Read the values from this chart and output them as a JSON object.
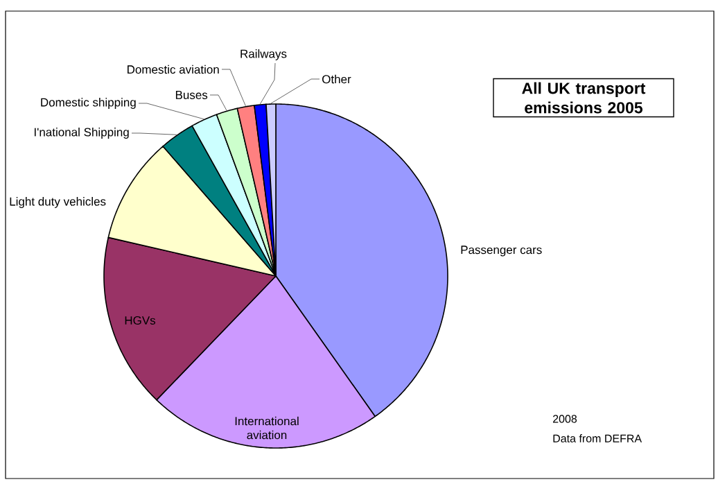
{
  "chart_data": {
    "type": "pie",
    "title": "All UK transport emissions 2005",
    "categories": [
      "Passenger cars",
      "International aviation",
      "HGVs",
      "Light duty vehicles",
      "I'national Shipping",
      "Domestic shipping",
      "Buses",
      "Domestic aviation",
      "Railways",
      "Other"
    ],
    "values": [
      40.2,
      22.0,
      16.4,
      10.0,
      3.3,
      2.5,
      2.0,
      1.6,
      1.1,
      0.9
    ],
    "colors": [
      "#9999ff",
      "#cc99ff",
      "#993366",
      "#ffffcc",
      "#008080",
      "#ccffff",
      "#ccffcc",
      "#ff8080",
      "#0000ff",
      "#ccccff"
    ],
    "annotations": [
      "2008",
      "Data from DEFRA"
    ]
  }
}
